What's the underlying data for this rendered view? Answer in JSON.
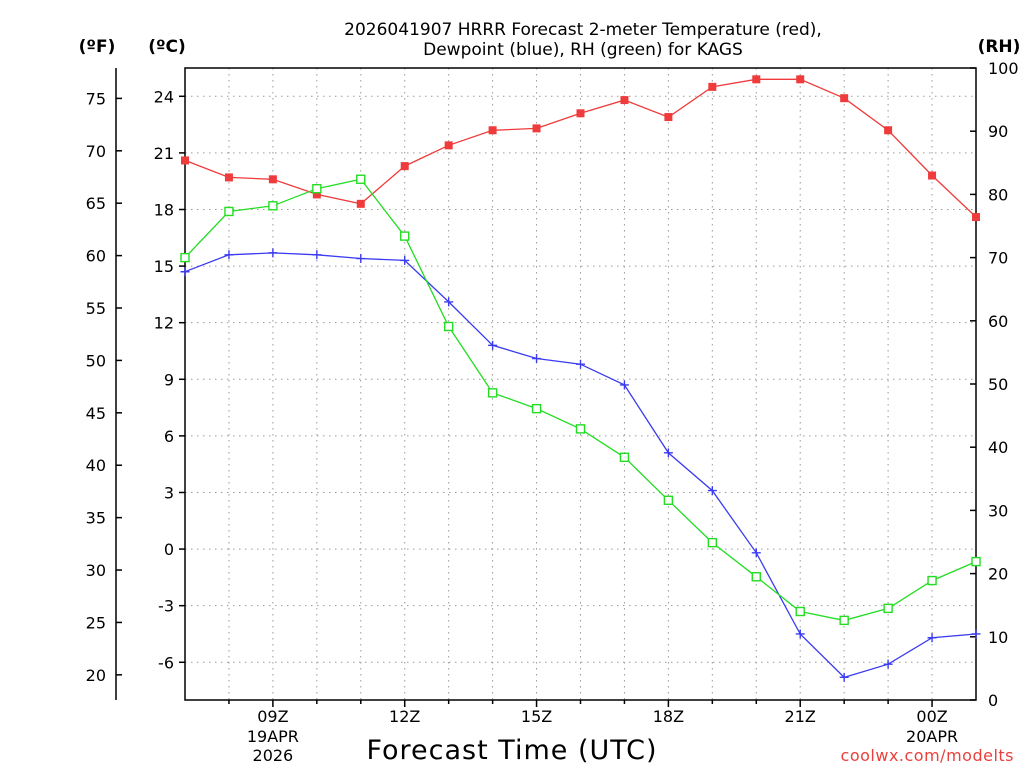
{
  "chart_data": {
    "type": "line",
    "title_lines": [
      "2026041907 HRRR Forecast 2-meter Temperature (red),",
      "Dewpoint (blue), RH (green) for KAGS"
    ],
    "xlabel": "Forecast Time (UTC)",
    "credit": "coolwx.com/modelts",
    "units": {
      "f": "(ºF)",
      "c": "(ºC)",
      "rh": "(RH)"
    },
    "x_hours": [
      7,
      8,
      9,
      10,
      11,
      12,
      13,
      14,
      15,
      16,
      17,
      18,
      19,
      20,
      21,
      22,
      23,
      24,
      25
    ],
    "xlim": [
      7,
      25
    ],
    "x_ticks": [
      {
        "hour": 9,
        "label": "09Z",
        "sub": [
          "19APR",
          "2026"
        ]
      },
      {
        "hour": 12,
        "label": "12Z",
        "sub": []
      },
      {
        "hour": 15,
        "label": "15Z",
        "sub": []
      },
      {
        "hour": 18,
        "label": "18Z",
        "sub": []
      },
      {
        "hour": 21,
        "label": "21Z",
        "sub": []
      },
      {
        "hour": 24,
        "label": "00Z",
        "sub": [
          "20APR"
        ]
      }
    ],
    "ylim_c": [
      -8,
      25.5
    ],
    "yticks_c": [
      -6,
      -3,
      0,
      3,
      6,
      9,
      12,
      15,
      18,
      21,
      24
    ],
    "yticks_f": [
      20,
      25,
      30,
      35,
      40,
      45,
      50,
      55,
      60,
      65,
      70,
      75
    ],
    "ylim_rh": [
      0,
      100
    ],
    "yticks_rh": [
      0,
      10,
      20,
      30,
      40,
      50,
      60,
      70,
      80,
      90,
      100
    ],
    "series": [
      {
        "name": "Temperature",
        "axis": "c",
        "color": "#ef3b3b",
        "marker": "filled-square",
        "values": [
          20.6,
          19.7,
          19.6,
          18.8,
          18.3,
          20.3,
          21.4,
          22.2,
          22.3,
          23.1,
          23.8,
          22.9,
          24.5,
          24.9,
          24.9,
          23.9,
          22.2,
          19.8,
          17.6
        ]
      },
      {
        "name": "Dewpoint",
        "axis": "c",
        "color": "#3b3bef",
        "marker": "plus",
        "values": [
          14.7,
          15.6,
          15.7,
          15.6,
          15.4,
          15.3,
          13.1,
          10.8,
          10.1,
          9.8,
          8.7,
          5.1,
          3.1,
          -0.2,
          -4.5,
          -6.8,
          -6.1,
          -4.7,
          -4.5
        ]
      },
      {
        "name": "RH",
        "axis": "rh",
        "color": "#22dd22",
        "marker": "open-square",
        "values": [
          70,
          77.3,
          78.2,
          80.9,
          82.4,
          73.4,
          59.1,
          48.6,
          46.1,
          42.9,
          38.4,
          31.6,
          24.9,
          19.5,
          14.0,
          12.6,
          14.5,
          18.9,
          21.9
        ]
      }
    ]
  }
}
